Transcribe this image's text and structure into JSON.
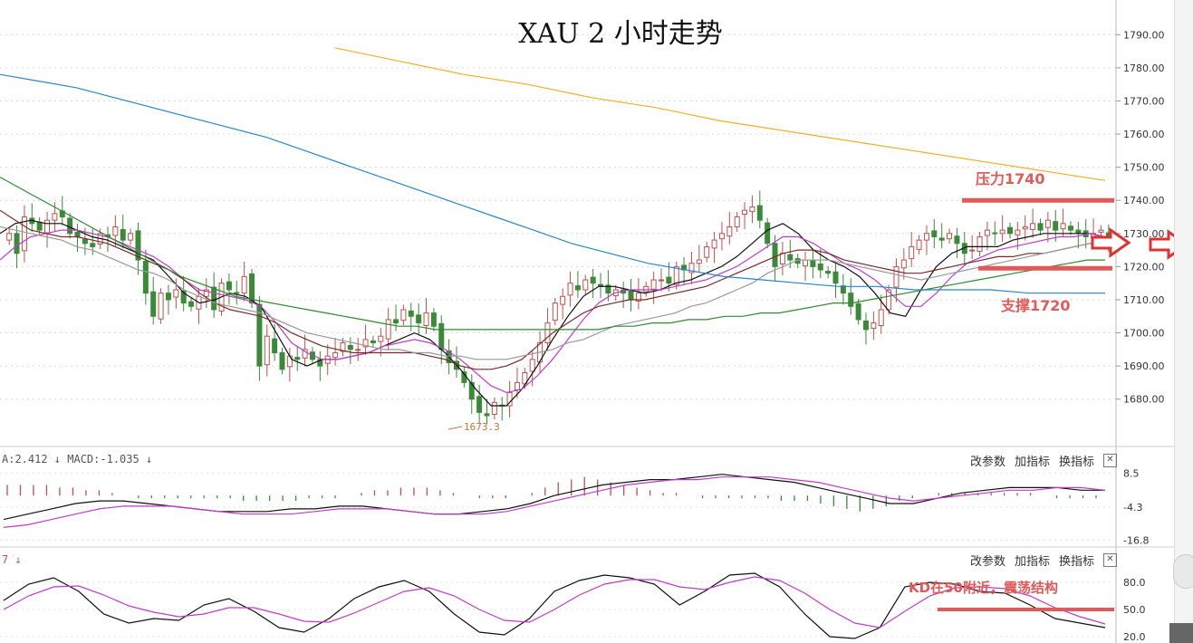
{
  "title": "XAU 2 小时走势",
  "annotations": {
    "resistance": "压力1740",
    "support": "支撑1720",
    "kd_note": "KD在50附近，震荡结构",
    "low_label": "1673.3"
  },
  "indicator_labels": {
    "macd": "A:2.412 ↓ MACD:-1.035 ↓",
    "kd": "7 ↓"
  },
  "panel_buttons": [
    "改参数",
    "加指标",
    "换指标"
  ],
  "close_glyph": "✕",
  "colors": {
    "up_candle": "#c0504d",
    "down_candle": "#3a8a3a",
    "ma_black": "#111111",
    "ma_magenta": "#c03cc8",
    "ma_maroon": "#7a2a2a",
    "ma_gray": "#999999",
    "ma_green": "#2e8b2e",
    "ma_blue": "#2a86c8",
    "ma_orange": "#f0b020",
    "annotation_red": "#e05a5a"
  },
  "chart_data": [
    {
      "type": "candlestick",
      "title": "XAU 2 小时走势",
      "ylim": [
        1672,
        1795
      ],
      "yticks": [
        "1790.00",
        "1780.00",
        "1770.00",
        "1760.00",
        "1750.00",
        "1740.00",
        "1730.00",
        "1720.00",
        "1710.00",
        "1700.00",
        "1690.00",
        "1680.00"
      ],
      "closes": [
        1730,
        1724,
        1735,
        1733,
        1731,
        1734,
        1736,
        1735,
        1730,
        1729,
        1727,
        1726,
        1730,
        1729,
        1732,
        1728,
        1730,
        1722,
        1712,
        1705,
        1712,
        1710,
        1713,
        1709,
        1708,
        1711,
        1713,
        1707,
        1715,
        1713,
        1712,
        1717,
        1709,
        1690,
        1699,
        1694,
        1689,
        1693,
        1692,
        1695,
        1692,
        1690,
        1693,
        1694,
        1697,
        1695,
        1695,
        1698,
        1697,
        1699,
        1704,
        1703,
        1707,
        1705,
        1703,
        1706,
        1702,
        1695,
        1691,
        1689,
        1685,
        1680,
        1676,
        1675,
        1679,
        1678,
        1682,
        1685,
        1688,
        1692,
        1697,
        1703,
        1709,
        1711,
        1715,
        1713,
        1716,
        1715,
        1714,
        1712,
        1713,
        1712,
        1710,
        1712,
        1714,
        1716,
        1716,
        1715,
        1720,
        1719,
        1721,
        1722,
        1726,
        1728,
        1730,
        1732,
        1735,
        1737,
        1738,
        1734,
        1727,
        1720,
        1724,
        1722,
        1721,
        1722,
        1720,
        1719,
        1718,
        1715,
        1712,
        1708,
        1704,
        1701,
        1703,
        1707,
        1713,
        1720,
        1722,
        1726,
        1728,
        1730,
        1729,
        1728,
        1730,
        1727,
        1724,
        1725,
        1729,
        1731,
        1730,
        1731,
        1730,
        1731,
        1732,
        1733,
        1731,
        1734,
        1731,
        1733,
        1731,
        1730,
        1729,
        1730,
        1731,
        1729
      ],
      "series": [
        {
          "name": "MA-black",
          "start": 0,
          "values": [
            1730,
            1733,
            1734,
            1733,
            1733,
            1731,
            1729,
            1728,
            1726,
            1724,
            1722,
            1717,
            1712,
            1709,
            1710,
            1712,
            1711,
            1708,
            1700,
            1692,
            1690,
            1692,
            1692,
            1693,
            1694,
            1696,
            1698,
            1700,
            1698,
            1694,
            1689,
            1683,
            1678,
            1678,
            1683,
            1690,
            1698,
            1705,
            1711,
            1714,
            1714,
            1713,
            1712,
            1713,
            1715,
            1716,
            1718,
            1720,
            1723,
            1727,
            1731,
            1733,
            1730,
            1725,
            1722,
            1720,
            1717,
            1712,
            1706,
            1705,
            1713,
            1720,
            1724,
            1726,
            1726,
            1726,
            1728,
            1729,
            1730,
            1730,
            1730,
            1730,
            1729
          ]
        },
        {
          "name": "MA-magenta",
          "start": 0,
          "values": [
            1722,
            1726,
            1729,
            1730,
            1731,
            1731,
            1730,
            1729,
            1727,
            1725,
            1723,
            1720,
            1716,
            1713,
            1712,
            1711,
            1710,
            1708,
            1703,
            1697,
            1694,
            1692,
            1692,
            1693,
            1694,
            1696,
            1697,
            1698,
            1697,
            1695,
            1692,
            1688,
            1684,
            1682,
            1683,
            1687,
            1692,
            1698,
            1704,
            1709,
            1712,
            1713,
            1713,
            1713,
            1714,
            1715,
            1716,
            1718,
            1720,
            1723,
            1726,
            1729,
            1729,
            1727,
            1724,
            1721,
            1719,
            1716,
            1712,
            1708,
            1708,
            1712,
            1717,
            1721,
            1723,
            1725,
            1726,
            1727,
            1728,
            1729,
            1729,
            1730,
            1729
          ]
        },
        {
          "name": "MA-maroon",
          "start": 0,
          "values": [
            1737,
            1734,
            1731,
            1730,
            1729,
            1729,
            1728,
            1727,
            1725,
            1723,
            1721,
            1719,
            1716,
            1712,
            1709,
            1707,
            1706,
            1705,
            1703,
            1700,
            1698,
            1696,
            1695,
            1694,
            1694,
            1694,
            1694,
            1694,
            1693,
            1692,
            1690,
            1689,
            1689,
            1690,
            1692,
            1696,
            1700,
            1703,
            1706,
            1708,
            1709,
            1710,
            1710,
            1711,
            1712,
            1713,
            1714,
            1716,
            1718,
            1720,
            1722,
            1724,
            1725,
            1725,
            1724,
            1722,
            1721,
            1720,
            1719,
            1718,
            1718,
            1719,
            1720,
            1721,
            1722,
            1723,
            1723,
            1724,
            1724,
            1725,
            1726,
            1727,
            1727
          ]
        },
        {
          "name": "MA-gray",
          "start": 0,
          "values": [
            1732,
            1731,
            1730,
            1729,
            1728,
            1726,
            1725,
            1723,
            1721,
            1719,
            1718,
            1716,
            1713,
            1711,
            1709,
            1708,
            1707,
            1706,
            1704,
            1702,
            1700,
            1699,
            1698,
            1697,
            1696,
            1695,
            1695,
            1694,
            1694,
            1693,
            1693,
            1692,
            1692,
            1692,
            1693,
            1694,
            1695,
            1697,
            1698,
            1700,
            1702,
            1703,
            1704,
            1705,
            1706,
            1708,
            1709,
            1711,
            1713,
            1715,
            1718,
            1720,
            1722,
            1722,
            1722,
            1721,
            1720,
            1719,
            1718,
            1717,
            1716,
            1717,
            1718,
            1719,
            1720,
            1721,
            1722,
            1723,
            1724,
            1725,
            1726,
            1727,
            1727
          ]
        },
        {
          "name": "MA-green",
          "start": 0,
          "values": [
            1747,
            1744,
            1741,
            1738,
            1735,
            1732,
            1729,
            1726,
            1723,
            1720,
            1717,
            1715,
            1713,
            1711,
            1710,
            1709,
            1708,
            1707,
            1706,
            1705,
            1704,
            1703,
            1702,
            1702,
            1701,
            1701,
            1701,
            1701,
            1701,
            1701,
            1701,
            1701,
            1701,
            1701,
            1702,
            1702,
            1703,
            1703,
            1704,
            1704,
            1705,
            1705,
            1706,
            1706,
            1707,
            1708,
            1709,
            1709,
            1710,
            1711,
            1712,
            1713,
            1714,
            1715,
            1716,
            1717,
            1718,
            1719,
            1720,
            1721,
            1722,
            1722
          ]
        },
        {
          "name": "MA-blue",
          "start": 0,
          "values": [
            1778,
            1776,
            1774,
            1771,
            1768,
            1765,
            1762,
            1759,
            1755,
            1751,
            1747,
            1743,
            1739,
            1735,
            1731,
            1727,
            1724,
            1721,
            1719,
            1717,
            1716,
            1715,
            1714,
            1714,
            1713,
            1713,
            1713,
            1712,
            1712,
            1712
          ]
        },
        {
          "name": "MA-orange",
          "start": 0,
          "values": [
            1786,
            1782,
            1778,
            1775,
            1771,
            1768,
            1764,
            1761,
            1758,
            1755,
            1752,
            1749,
            1746
          ]
        }
      ]
    },
    {
      "type": "bar",
      "title": "MACD",
      "yticks": [
        "8.5",
        "-4.3",
        "-16.8"
      ],
      "ylim": [
        -18,
        12
      ],
      "histogram": [
        4,
        4,
        4,
        4,
        3,
        3,
        2,
        2,
        1,
        0,
        -1,
        -1,
        -1,
        -1,
        -1,
        -1,
        -1,
        -1,
        -2,
        -2,
        -2,
        -2,
        -2,
        -1,
        -1,
        -1,
        0,
        1,
        2,
        2,
        3,
        3,
        3,
        2,
        1,
        0,
        -1,
        -1,
        -1,
        0,
        1,
        3,
        5,
        6,
        7,
        6,
        5,
        4,
        3,
        2,
        1,
        1,
        0,
        -1,
        -1,
        -1,
        -1,
        -1,
        -1,
        -2,
        -2,
        -2,
        -3,
        -4,
        -5,
        -6,
        -5,
        -4,
        -2,
        -1,
        0,
        1,
        1,
        1,
        1,
        1,
        1,
        1,
        1,
        0,
        -1,
        -1,
        -1,
        -1
      ],
      "series": [
        {
          "name": "DIF",
          "values": [
            -9,
            -7,
            -5,
            -3,
            -2,
            -2,
            -3,
            -4,
            -5,
            -6,
            -6,
            -6,
            -5,
            -5,
            -4,
            -4,
            -5,
            -6,
            -7,
            -7,
            -6,
            -5,
            -3,
            0,
            2,
            4,
            5,
            6,
            6,
            7,
            8,
            7,
            6,
            5,
            3,
            1,
            -1,
            -3,
            -3,
            -1,
            1,
            2,
            3,
            3,
            3,
            2,
            2
          ]
        },
        {
          "name": "DEA",
          "values": [
            -12,
            -11,
            -9,
            -7,
            -5,
            -4,
            -4,
            -4,
            -5,
            -6,
            -7,
            -7,
            -7,
            -6,
            -5,
            -5,
            -5,
            -6,
            -7,
            -7,
            -7,
            -6,
            -4,
            -2,
            0,
            2,
            4,
            5,
            6,
            6,
            7,
            7,
            7,
            6,
            5,
            3,
            1,
            -1,
            -2,
            -1,
            0,
            1,
            2,
            2,
            3,
            3,
            2
          ]
        }
      ]
    },
    {
      "type": "line",
      "title": "KD",
      "yticks": [
        "80.0",
        "50.0",
        "20.0"
      ],
      "ylim": [
        15,
        95
      ],
      "series": [
        {
          "name": "K",
          "values": [
            60,
            78,
            85,
            70,
            45,
            35,
            40,
            38,
            55,
            62,
            48,
            30,
            25,
            40,
            62,
            75,
            82,
            70,
            45,
            25,
            22,
            40,
            70,
            82,
            88,
            85,
            78,
            55,
            70,
            88,
            90,
            75,
            45,
            20,
            18,
            30,
            75,
            80,
            78,
            70,
            68,
            55,
            40,
            35,
            30
          ]
        },
        {
          "name": "D",
          "values": [
            50,
            65,
            75,
            76,
            66,
            54,
            47,
            42,
            45,
            52,
            52,
            45,
            37,
            36,
            46,
            58,
            70,
            74,
            65,
            50,
            38,
            36,
            50,
            66,
            78,
            83,
            83,
            75,
            72,
            80,
            86,
            82,
            68,
            50,
            35,
            30,
            48,
            65,
            74,
            75,
            73,
            65,
            52,
            42,
            34
          ]
        }
      ]
    }
  ]
}
